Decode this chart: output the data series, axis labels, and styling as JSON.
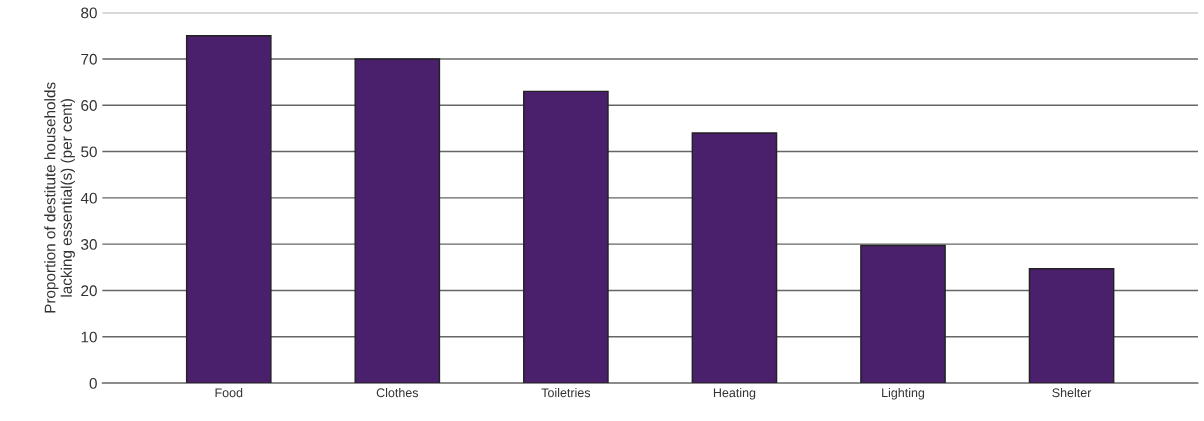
{
  "chart_data": {
    "type": "bar",
    "ylabel": "Proportion of destitute households\nlacking essential(s) (per cent)",
    "categories": [
      "Food",
      "Clothes",
      "Toiletries",
      "Heating",
      "Lighting",
      "Shelter"
    ],
    "values": [
      75,
      70,
      63,
      54,
      29.7,
      24.7
    ],
    "color": "#4a1f6b",
    "ylim": [
      0,
      80
    ],
    "yticks": [
      0,
      10,
      20,
      30,
      40,
      50,
      60,
      70,
      80
    ],
    "grid": "y"
  }
}
